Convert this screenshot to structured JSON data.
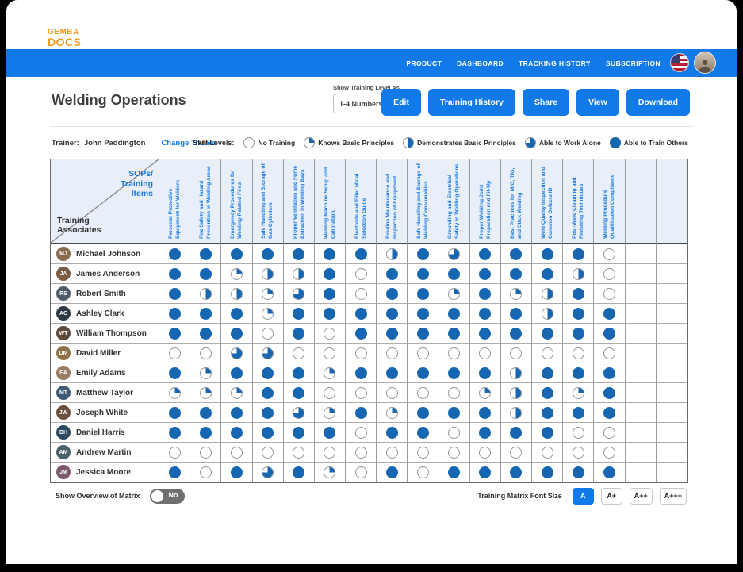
{
  "colors": {
    "accent_blue": "#117ae8",
    "pie_blue": "#1666b2",
    "logo_orange": "#f89a1d",
    "header_bg": "#e9eff9",
    "column_text_blue": "#1779e6"
  },
  "navbar": {
    "logo_top": "GEMBA",
    "logo_bottom": "DOCS",
    "links": [
      "PRODUCT",
      "DASHBOARD",
      "TRACKING HISTORY",
      "SUBSCRIPTION"
    ]
  },
  "header": {
    "title": "Welding Operations",
    "training_level_label": "Show Training Level As",
    "training_level_value": "1-4 Numbers",
    "buttons": [
      "Edit",
      "Training History",
      "Share",
      "View",
      "Download"
    ]
  },
  "trainer": {
    "label": "Trainer:",
    "name": "John Paddington",
    "change_link": "Change Trainer"
  },
  "legend": {
    "label": "Skill Levels:",
    "items": [
      "No Training",
      "Knows Basic Principles",
      "Demonstrates Basic Principles",
      "Able to Work Alone",
      "Able to Train Others"
    ]
  },
  "matrix": {
    "corner_title": "SOPs/ Training Items",
    "corner_subtitle": "Training Associates",
    "columns": [
      "Personal Protective Equipment for Welders",
      "Fire Safety and Hazard Prevention in Welding Areas",
      "Emergency Procedures for Welding-Related Fires",
      "Safe Handling and Storage of Gas Cylinders",
      "Proper Ventilation and Fume Extraction in Welding Bays",
      "Welding Machine Setup and Calibration",
      "Electrode and Filler Metal Selection Guide",
      "Routine Maintenance and Inspection of Equipment",
      "Safe Handling and Storage of Welding Consumables",
      "Grounding and Electrical Safety in Welding Operations",
      "Proper Welding Joint Preparation and Fit-Up",
      "Best Practices for MIG, TIG, and Stick Welding",
      "Weld Quality Inspection and Common Defects ID",
      "Post-Weld Cleaning and Finishing Techniques",
      "Welding Procedure Qualification Compliance"
    ],
    "empty_trailing_columns": 2,
    "rows": [
      {
        "name": "Michael Johnson",
        "initials": "MJ",
        "color": "#8a6d4f",
        "levels": [
          4,
          4,
          4,
          4,
          4,
          4,
          4,
          2,
          4,
          3,
          4,
          4,
          4,
          4,
          0
        ]
      },
      {
        "name": "James Anderson",
        "initials": "JA",
        "color": "#7a5c44",
        "levels": [
          4,
          4,
          1,
          2,
          2,
          4,
          0,
          4,
          4,
          4,
          4,
          4,
          4,
          2,
          0
        ]
      },
      {
        "name": "Robert Smith",
        "initials": "RS",
        "color": "#4f5d6b",
        "levels": [
          4,
          2,
          2,
          1,
          3,
          4,
          0,
          4,
          4,
          1,
          4,
          1,
          2,
          4,
          0
        ]
      },
      {
        "name": "Ashley Clark",
        "initials": "AC",
        "color": "#2f3a45",
        "levels": [
          4,
          4,
          4,
          1,
          4,
          4,
          4,
          4,
          4,
          4,
          4,
          4,
          2,
          4,
          4
        ]
      },
      {
        "name": "William Thompson",
        "initials": "WT",
        "color": "#5d4a3a",
        "levels": [
          4,
          4,
          4,
          0,
          4,
          0,
          4,
          4,
          4,
          4,
          4,
          4,
          4,
          4,
          4
        ]
      },
      {
        "name": "David Miller",
        "initials": "DM",
        "color": "#8f7348",
        "levels": [
          0,
          0,
          3,
          3,
          0,
          0,
          0,
          0,
          0,
          0,
          0,
          0,
          0,
          0,
          0
        ]
      },
      {
        "name": "Emily Adams",
        "initials": "EA",
        "color": "#9a7d62",
        "levels": [
          4,
          1,
          4,
          4,
          4,
          1,
          4,
          4,
          4,
          4,
          4,
          2,
          4,
          4,
          4
        ]
      },
      {
        "name": "Matthew Taylor",
        "initials": "MT",
        "color": "#3e5a74",
        "levels": [
          1,
          1,
          1,
          4,
          4,
          0,
          0,
          0,
          0,
          0,
          1,
          2,
          4,
          1,
          4
        ]
      },
      {
        "name": "Joseph White",
        "initials": "JW",
        "color": "#6b4f3f",
        "levels": [
          4,
          4,
          4,
          4,
          3,
          1,
          4,
          1,
          4,
          4,
          4,
          2,
          4,
          4,
          4
        ]
      },
      {
        "name": "Daniel Harris",
        "initials": "DH",
        "color": "#2e4a5e",
        "levels": [
          4,
          4,
          4,
          4,
          4,
          4,
          0,
          4,
          4,
          0,
          4,
          4,
          4,
          0,
          0
        ]
      },
      {
        "name": "Andrew Martin",
        "initials": "AM",
        "color": "#4a616e",
        "levels": [
          0,
          0,
          0,
          0,
          0,
          0,
          0,
          0,
          0,
          0,
          0,
          0,
          0,
          0,
          0
        ]
      },
      {
        "name": "Jessica Moore",
        "initials": "JM",
        "color": "#7d5a6b",
        "levels": [
          4,
          0,
          4,
          3,
          4,
          1,
          0,
          4,
          0,
          4,
          4,
          4,
          4,
          4,
          4
        ]
      }
    ]
  },
  "footer": {
    "overview_label": "Show Overview of Matrix",
    "toggle_state": "No",
    "font_size_label": "Training Matrix Font Size",
    "font_buttons": [
      "A",
      "A+",
      "A++",
      "A+++"
    ],
    "active_font_button": "A"
  }
}
